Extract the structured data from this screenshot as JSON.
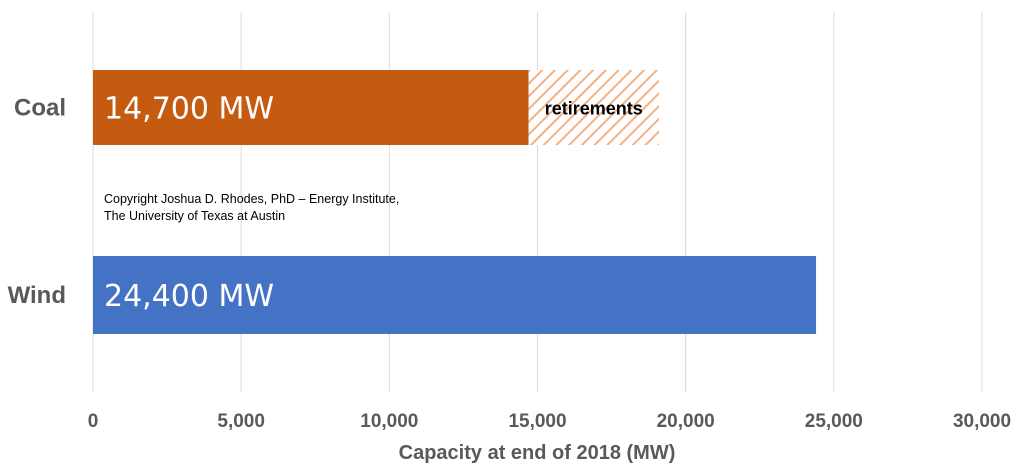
{
  "chart_data": {
    "type": "bar",
    "orientation": "horizontal",
    "categories": [
      "Coal",
      "Wind"
    ],
    "series": [
      {
        "values": [
          14700,
          24400
        ],
        "color": "#C55A11"
      },
      {
        "values": [
          4400,
          0
        ],
        "color": "#F4B183",
        "pattern": "hatched"
      }
    ],
    "data_labels": [
      "14,700 MW",
      "24,400 MW"
    ],
    "annotation": "retirements",
    "xlabel": "Capacity at end of 2018 (MW)",
    "ylabel": "",
    "xlim": [
      0,
      30000
    ],
    "xticks": [
      0,
      5000,
      10000,
      15000,
      20000,
      25000,
      30000
    ],
    "xtick_labels": [
      "0",
      "5,000",
      "10,000",
      "15,000",
      "20,000",
      "25,000",
      "30,000"
    ],
    "grid": true,
    "bar_colors": {
      "Coal": "#C55A11",
      "Wind": "#4472C4"
    }
  },
  "copyright": {
    "line1": "Copyright Joshua D. Rhodes, PhD – Energy Institute,",
    "line2": "The University of Texas at Austin"
  }
}
